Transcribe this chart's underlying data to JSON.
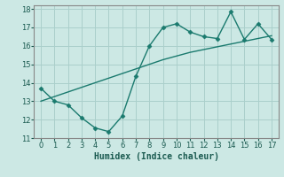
{
  "title": "",
  "xlabel": "Humidex (Indice chaleur)",
  "background_color": "#cce8e4",
  "grid_color": "#aacfcb",
  "line_color": "#1a7a6e",
  "xlim": [
    -0.5,
    17.5
  ],
  "ylim": [
    11,
    18.2
  ],
  "xticks": [
    0,
    1,
    2,
    3,
    4,
    5,
    6,
    7,
    8,
    9,
    10,
    11,
    12,
    13,
    14,
    15,
    16,
    17
  ],
  "yticks": [
    11,
    12,
    13,
    14,
    15,
    16,
    17,
    18
  ],
  "x_data": [
    0,
    1,
    2,
    3,
    4,
    5,
    6,
    7,
    8,
    9,
    10,
    11,
    12,
    13,
    14,
    15,
    16,
    17
  ],
  "y_jagged": [
    13.7,
    13.0,
    12.8,
    12.1,
    11.55,
    11.35,
    12.2,
    14.35,
    16.0,
    17.0,
    17.2,
    16.75,
    16.5,
    16.4,
    17.85,
    16.35,
    17.2,
    16.35
  ],
  "y_trend": [
    13.0,
    13.25,
    13.5,
    13.75,
    14.0,
    14.25,
    14.5,
    14.75,
    15.0,
    15.25,
    15.45,
    15.65,
    15.8,
    15.95,
    16.1,
    16.25,
    16.4,
    16.55
  ]
}
